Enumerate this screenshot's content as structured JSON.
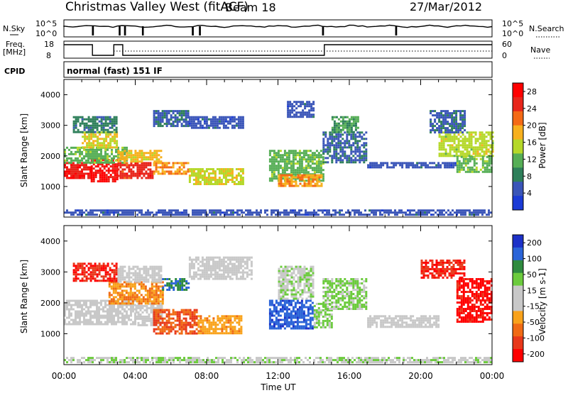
{
  "header": {
    "station": "Christmas Valley West (fitACF)",
    "beam": "Beam 18",
    "date": "27/Mar/2012"
  },
  "strip_labels": {
    "nsky": "N.Sky",
    "nsearch": "N.Search",
    "freq_line1": "Freq.",
    "freq_line2": "[MHz]",
    "nave": "Nave",
    "cpid": "CPID",
    "cpid_value": "normal (fast) 151 IF"
  },
  "noise_axis": {
    "left": [
      "10^5",
      "10^0"
    ],
    "right": [
      "10^5",
      "10^0"
    ]
  },
  "freq_axis": {
    "left": [
      "18",
      "8"
    ],
    "right": [
      "60",
      "0"
    ]
  },
  "x_axis": {
    "label": "Time UT",
    "ticks": [
      "00:00",
      "04:00",
      "08:00",
      "12:00",
      "16:00",
      "20:00",
      "00:00"
    ]
  },
  "colors": {
    "power": [
      "#1b3bd6",
      "#3a55b8",
      "#2e7f5a",
      "#56ae56",
      "#b5d829",
      "#f7b01e",
      "#f46a16",
      "#e8251a",
      "#ff0000"
    ],
    "velocity": [
      "#1c31c8",
      "#2b64d8",
      "#2f8b3f",
      "#6ccb3d",
      "#c8c8c8",
      "#c8c8c8",
      "#f9a21a",
      "#f06a14",
      "#e8381a",
      "#ff0000"
    ]
  },
  "chart_data": [
    {
      "type": "heatmap",
      "name": "power",
      "ylabel": "Slant Range [km]",
      "xlabel": "",
      "yticks": [
        1000,
        2000,
        3000,
        4000
      ],
      "ylim": [
        0,
        4500
      ],
      "xlim": [
        0,
        24
      ],
      "colorbar": {
        "label": "Power [dB]",
        "ticks": [
          4,
          8,
          12,
          16,
          20,
          24,
          28
        ],
        "range": [
          0,
          30
        ]
      },
      "regions": [
        {
          "t": [
            0.0,
            1.5
          ],
          "r": [
            1300,
            1800
          ],
          "v": 26
        },
        {
          "t": [
            1.5,
            3.0
          ],
          "r": [
            1200,
            1900
          ],
          "v": 27
        },
        {
          "t": [
            3.0,
            5.0
          ],
          "r": [
            1300,
            1800
          ],
          "v": 25
        },
        {
          "t": [
            5.0,
            7.0
          ],
          "r": [
            1400,
            1800
          ],
          "v": 20
        },
        {
          "t": [
            7.0,
            10.0
          ],
          "r": [
            1100,
            1600
          ],
          "v": 16
        },
        {
          "t": [
            0.0,
            3.5
          ],
          "r": [
            1800,
            2300
          ],
          "v": 12
        },
        {
          "t": [
            1.0,
            3.0
          ],
          "r": [
            2300,
            2800
          ],
          "v": 16
        },
        {
          "t": [
            3.0,
            5.5
          ],
          "r": [
            1800,
            2200
          ],
          "v": 18
        },
        {
          "t": [
            0.5,
            3.0
          ],
          "r": [
            2800,
            3300
          ],
          "v": 8
        },
        {
          "t": [
            5.0,
            7.0
          ],
          "r": [
            3000,
            3500
          ],
          "v": 6
        },
        {
          "t": [
            7.0,
            10.0
          ],
          "r": [
            2900,
            3300
          ],
          "v": 5
        },
        {
          "t": [
            11.5,
            14.5
          ],
          "r": [
            1200,
            2200
          ],
          "v": 12
        },
        {
          "t": [
            12.0,
            14.5
          ],
          "r": [
            1000,
            1400
          ],
          "v": 20
        },
        {
          "t": [
            14.5,
            17.0
          ],
          "r": [
            1800,
            2800
          ],
          "v": 6
        },
        {
          "t": [
            15.0,
            16.5
          ],
          "r": [
            2800,
            3300
          ],
          "v": 10
        },
        {
          "t": [
            12.5,
            14.0
          ],
          "r": [
            3300,
            3800
          ],
          "v": 5
        },
        {
          "t": [
            17.0,
            22.0
          ],
          "r": [
            1600,
            1800
          ],
          "v": 5
        },
        {
          "t": [
            21.0,
            24.0
          ],
          "r": [
            2000,
            2800
          ],
          "v": 15
        },
        {
          "t": [
            20.5,
            22.5
          ],
          "r": [
            2800,
            3500
          ],
          "v": 6
        },
        {
          "t": [
            22.0,
            24.0
          ],
          "r": [
            1500,
            2000
          ],
          "v": 12
        },
        {
          "t": [
            0.0,
            24.0
          ],
          "r": [
            100,
            250
          ],
          "v": 5
        }
      ]
    },
    {
      "type": "heatmap",
      "name": "velocity",
      "ylabel": "Slant Range [km]",
      "xlabel": "Time UT",
      "yticks": [
        1000,
        2000,
        3000,
        4000
      ],
      "ylim": [
        0,
        4500
      ],
      "xlim": [
        0,
        24
      ],
      "colorbar": {
        "label": "Velocity [m s-1]",
        "ticks": [
          200,
          100,
          50,
          15,
          -15,
          -50,
          -100,
          -200
        ],
        "range": [
          -250,
          250
        ]
      },
      "regions": [
        {
          "t": [
            0.0,
            4.0
          ],
          "r": [
            1300,
            2100
          ],
          "v": 0
        },
        {
          "t": [
            4.0,
            5.5
          ],
          "r": [
            1300,
            2000
          ],
          "v": 0
        },
        {
          "t": [
            5.0,
            7.5
          ],
          "r": [
            1000,
            1800
          ],
          "v": -150
        },
        {
          "t": [
            7.5,
            10.0
          ],
          "r": [
            1000,
            1600
          ],
          "v": -80
        },
        {
          "t": [
            2.5,
            5.5
          ],
          "r": [
            2000,
            2700
          ],
          "v": -100
        },
        {
          "t": [
            0.5,
            3.0
          ],
          "r": [
            2700,
            3300
          ],
          "v": -200
        },
        {
          "t": [
            3.0,
            5.5
          ],
          "r": [
            2700,
            3200
          ],
          "v": 5
        },
        {
          "t": [
            5.5,
            7.0
          ],
          "r": [
            2400,
            2800
          ],
          "v": 150
        },
        {
          "t": [
            7.0,
            10.5
          ],
          "r": [
            2800,
            3500
          ],
          "v": 5
        },
        {
          "t": [
            11.5,
            14.0
          ],
          "r": [
            1200,
            2100
          ],
          "v": 180
        },
        {
          "t": [
            14.0,
            15.0
          ],
          "r": [
            1200,
            2000
          ],
          "v": 60
        },
        {
          "t": [
            14.5,
            17.0
          ],
          "r": [
            1800,
            2800
          ],
          "v": 60
        },
        {
          "t": [
            12.0,
            14.0
          ],
          "r": [
            2100,
            3200
          ],
          "v": 40
        },
        {
          "t": [
            17.0,
            21.0
          ],
          "r": [
            1200,
            1600
          ],
          "v": 0
        },
        {
          "t": [
            20.0,
            22.5
          ],
          "r": [
            2800,
            3400
          ],
          "v": -200
        },
        {
          "t": [
            22.0,
            24.0
          ],
          "r": [
            1400,
            2800
          ],
          "v": -220
        },
        {
          "t": [
            0.0,
            24.0
          ],
          "r": [
            100,
            250
          ],
          "v": 40
        }
      ]
    }
  ]
}
